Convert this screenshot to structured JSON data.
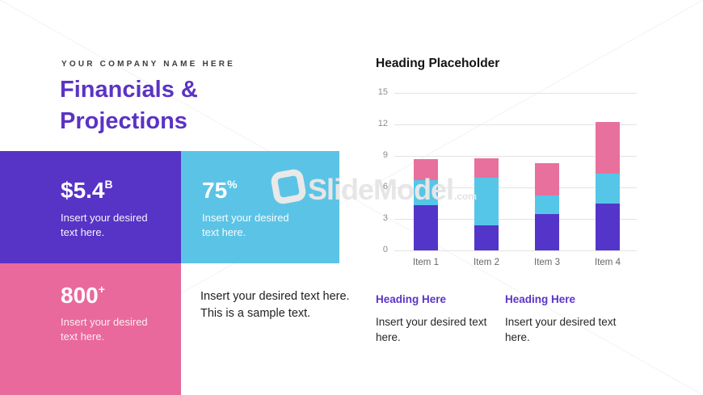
{
  "slide": {
    "eyebrow": "YOUR COMPANY NAME HERE",
    "title": "Financials & Projections",
    "paragraph": "Insert your desired text here. This is a sample text."
  },
  "kpis": [
    {
      "value": "$5.4",
      "suffix": "B",
      "desc": "Insert your desired text here.",
      "bg": "#5733c6"
    },
    {
      "value": "75",
      "suffix": "%",
      "desc": "Insert your desired text here.",
      "bg": "#5bc4e6"
    },
    {
      "value": "800",
      "suffix": "+",
      "desc": "Insert your desired text here.",
      "bg": "#e9699c"
    }
  ],
  "chart_data": {
    "type": "bar",
    "stacked": true,
    "title": "Heading Placeholder",
    "categories": [
      "Item 1",
      "Item 2",
      "Item 3",
      "Item 4"
    ],
    "series": [
      {
        "name": "bottom-purple",
        "color": "#5435c9",
        "values": [
          4.3,
          2.4,
          3.5,
          4.5
        ]
      },
      {
        "name": "middle-cyan",
        "color": "#55c6e8",
        "values": [
          2.4,
          4.5,
          1.7,
          2.8
        ]
      },
      {
        "name": "top-pink",
        "color": "#e8709d",
        "values": [
          2.0,
          1.9,
          3.1,
          4.9
        ]
      }
    ],
    "totals": [
      8.7,
      8.8,
      8.3,
      12.2
    ],
    "ylim": [
      0,
      15
    ],
    "yticks": [
      0,
      3,
      6,
      9,
      12,
      15
    ],
    "grid": true,
    "legend": "none",
    "xlabel": "",
    "ylabel": ""
  },
  "footer_columns": [
    {
      "heading": "Heading Here",
      "body": "Insert your desired text here."
    },
    {
      "heading": "Heading Here",
      "body": "Insert your desired text here."
    }
  ],
  "watermark": {
    "brand": "SlideModel",
    "tld": ".com"
  },
  "colors": {
    "title_purple": "#5b33c4",
    "kpi_purple": "#5733c6",
    "kpi_cyan": "#5bc4e6",
    "kpi_pink": "#e9699c",
    "heading_black": "#141414",
    "gridline": "#e3e3e3"
  }
}
